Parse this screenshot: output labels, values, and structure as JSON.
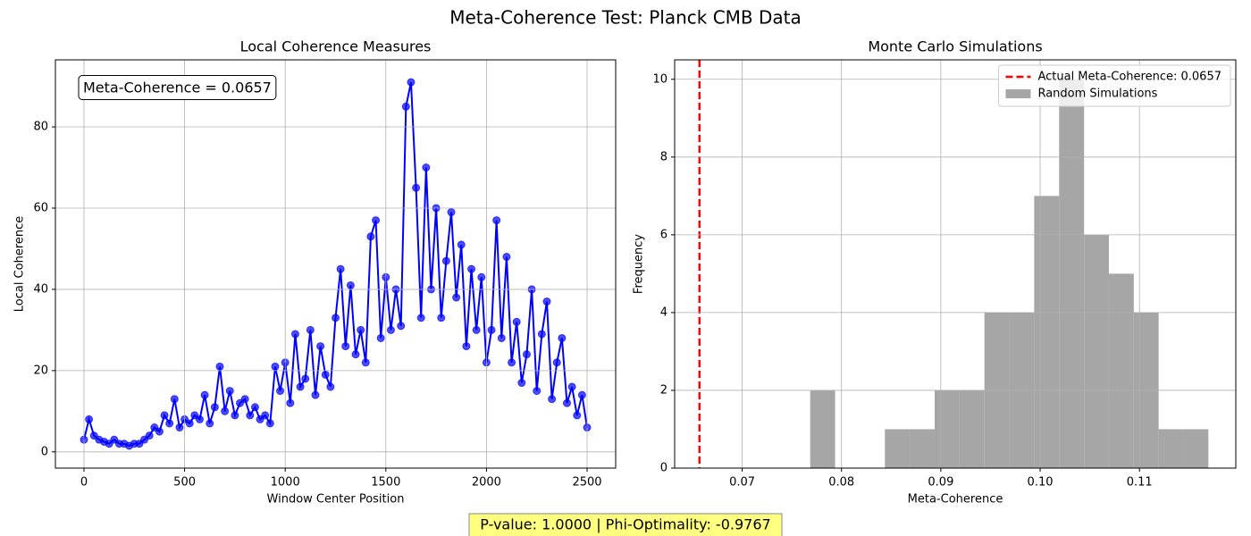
{
  "title": "Meta-Coherence Test: Planck CMB Data",
  "footer": "P-value: 1.0000 | Phi-Optimality: -0.9767",
  "chart_data": [
    {
      "type": "line",
      "title": "Local Coherence Measures",
      "x_label": "Window Center Position",
      "y_label": "Local Coherence",
      "annotation": "Meta-Coherence = 0.0657",
      "color": "#0000ff",
      "grid": true,
      "x": [
        0,
        25,
        50,
        75,
        100,
        125,
        150,
        175,
        200,
        225,
        250,
        275,
        300,
        325,
        350,
        375,
        400,
        425,
        450,
        475,
        500,
        525,
        550,
        575,
        600,
        625,
        650,
        675,
        700,
        725,
        750,
        775,
        800,
        825,
        850,
        875,
        900,
        925,
        950,
        975,
        1000,
        1025,
        1050,
        1075,
        1100,
        1125,
        1150,
        1175,
        1200,
        1225,
        1250,
        1275,
        1300,
        1325,
        1350,
        1375,
        1400,
        1425,
        1450,
        1475,
        1500,
        1525,
        1550,
        1575,
        1600,
        1625,
        1650,
        1675,
        1700,
        1725,
        1750,
        1775,
        1800,
        1825,
        1850,
        1875,
        1900,
        1925,
        1950,
        1975,
        2000,
        2025,
        2050,
        2075,
        2100,
        2125,
        2150,
        2175,
        2200,
        2225,
        2250,
        2275,
        2300,
        2325,
        2350,
        2375,
        2400,
        2425,
        2450,
        2475,
        2500
      ],
      "values": [
        3,
        8,
        4,
        3,
        2.5,
        2,
        3,
        2,
        2,
        1.5,
        2,
        2,
        3,
        4,
        6,
        5,
        9,
        7,
        13,
        6,
        8,
        7,
        9,
        8,
        14,
        7,
        11,
        21,
        10,
        15,
        9,
        12,
        13,
        9,
        11,
        8,
        9,
        7,
        21,
        15,
        22,
        12,
        29,
        16,
        18,
        30,
        14,
        26,
        19,
        16,
        33,
        45,
        26,
        41,
        24,
        30,
        22,
        53,
        57,
        28,
        43,
        30,
        40,
        31,
        85,
        91,
        65,
        33,
        70,
        40,
        60,
        33,
        47,
        59,
        38,
        51,
        26,
        45,
        30,
        43,
        22,
        30,
        57,
        28,
        48,
        22,
        32,
        17,
        24,
        40,
        15,
        29,
        37,
        13,
        22,
        28,
        12,
        16,
        9,
        14,
        6
      ],
      "xlim": [
        -142,
        2642
      ],
      "ylim": [
        -4,
        96.5
      ],
      "xticks": [
        0,
        500,
        1000,
        1500,
        2000,
        2500
      ],
      "yticks": [
        0,
        20,
        40,
        60,
        80
      ]
    },
    {
      "type": "histogram",
      "title": "Monte Carlo Simulations",
      "x_label": "Meta-Coherence",
      "y_label": "Frequency",
      "grid": true,
      "legend": "upper right",
      "reference_lines": [
        {
          "name": "Actual Meta-Coherence: 0.0657",
          "value": 0.0657,
          "color": "#ff0000"
        }
      ],
      "bins": [
        0.07685,
        0.07936,
        0.08186,
        0.08437,
        0.08687,
        0.08938,
        0.09189,
        0.09439,
        0.0969,
        0.0994,
        0.10191,
        0.10442,
        0.10692,
        0.10943,
        0.11193,
        0.11444,
        0.11694
      ],
      "series": [
        {
          "name": "Random Simulations",
          "color": "#a6a6a6",
          "values": [
            2,
            0,
            0,
            1,
            1,
            2,
            2,
            4,
            4,
            7,
            10,
            6,
            5,
            4,
            1,
            1
          ]
        }
      ],
      "xlim": [
        0.0632,
        0.1197
      ],
      "ylim": [
        0,
        10.5
      ],
      "xticks": [
        0.07,
        0.08,
        0.09,
        {
          "value": 0.1,
          "label": "0.10"
        },
        0.11
      ],
      "yticks": [
        0,
        2,
        4,
        6,
        8,
        10
      ]
    }
  ]
}
